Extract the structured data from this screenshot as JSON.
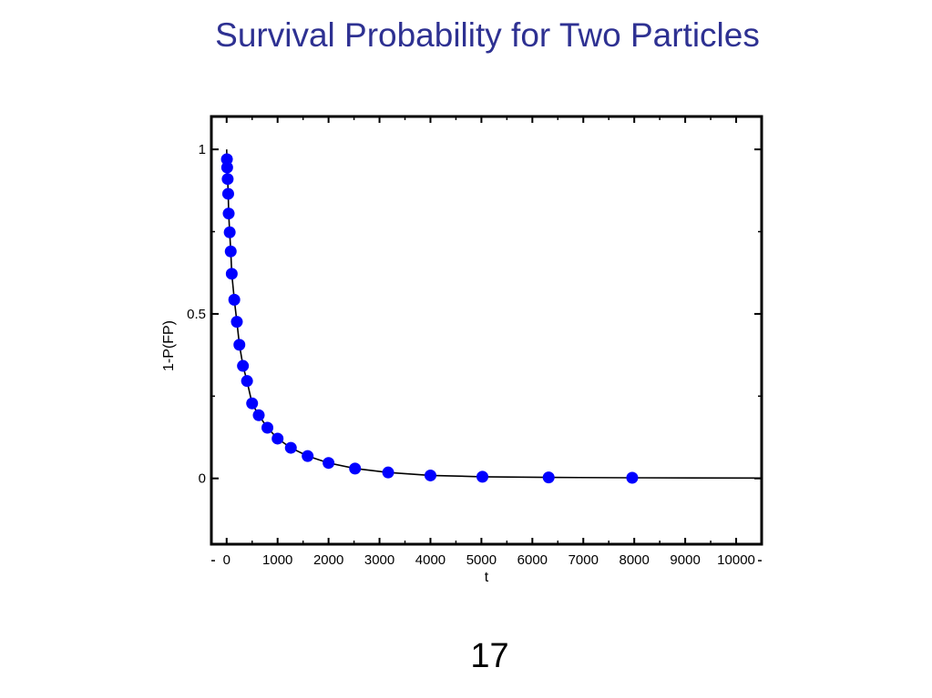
{
  "slide": {
    "title": "Survival Probability for Two Particles",
    "page_number": "17"
  },
  "chart_data": {
    "type": "scatter",
    "title": "",
    "xlabel": "t",
    "ylabel": "1-P(FP)",
    "xlim": [
      -300,
      10500
    ],
    "ylim": [
      -0.2,
      1.1
    ],
    "x_ticks": [
      0,
      1000,
      2000,
      3000,
      4000,
      5000,
      6000,
      7000,
      8000,
      9000,
      10000
    ],
    "y_ticks": [
      0,
      0.5,
      1
    ],
    "y_tick_labels": [
      "0",
      "0.5",
      "1"
    ],
    "grid": false,
    "legend": "none",
    "series": [
      {
        "marker_color": "#0000ff",
        "line_color": "#000000",
        "x": [
          5,
          10,
          20,
          30,
          40,
          60,
          80,
          100,
          150,
          200,
          250,
          320,
          400,
          500,
          630,
          800,
          1000,
          1260,
          1590,
          2000,
          2520,
          3170,
          4000,
          5020,
          6320,
          7960
        ],
        "y": [
          0.97,
          0.945,
          0.91,
          0.865,
          0.805,
          0.748,
          0.69,
          0.622,
          0.543,
          0.476,
          0.406,
          0.342,
          0.296,
          0.228,
          0.192,
          0.154,
          0.121,
          0.093,
          0.068,
          0.047,
          0.03,
          0.018,
          0.009,
          0.005,
          0.003,
          0.002
        ]
      }
    ]
  }
}
